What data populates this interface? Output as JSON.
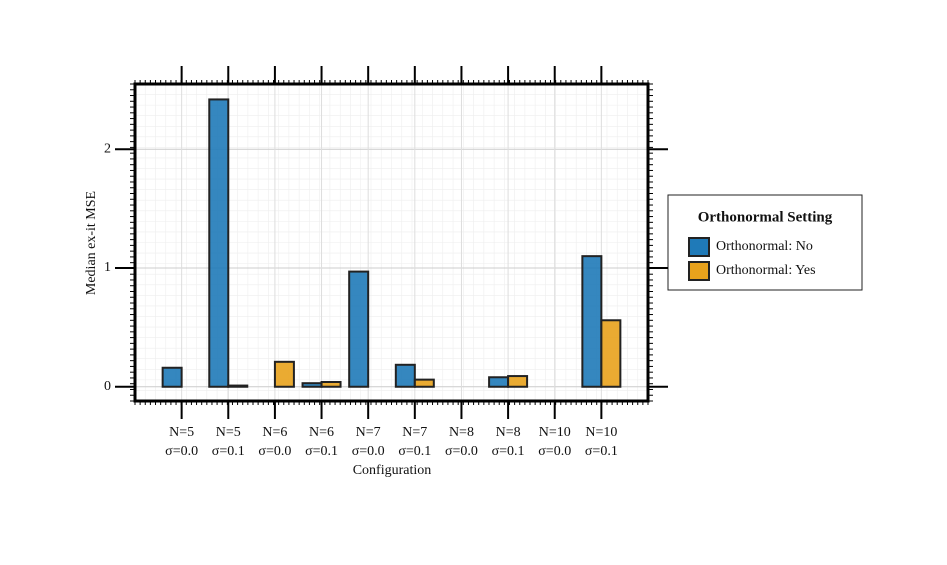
{
  "chart_data": {
    "type": "bar",
    "xlabel": "Configuration",
    "ylabel": "Median ex-it MSE",
    "categories": [
      [
        "N=5",
        "σ=0.0"
      ],
      [
        "N=5",
        "σ=0.1"
      ],
      [
        "N=6",
        "σ=0.0"
      ],
      [
        "N=6",
        "σ=0.1"
      ],
      [
        "N=7",
        "σ=0.0"
      ],
      [
        "N=7",
        "σ=0.1"
      ],
      [
        "N=8",
        "σ=0.0"
      ],
      [
        "N=8",
        "σ=0.1"
      ],
      [
        "N=10",
        "σ=0.0"
      ],
      [
        "N=10",
        "σ=0.1"
      ]
    ],
    "series": [
      {
        "name": "Orthonormal: No",
        "color": "#1f7ab8",
        "values": [
          0.16,
          2.42,
          0.0,
          0.03,
          0.97,
          0.185,
          0.0,
          0.08,
          0.0,
          1.1
        ]
      },
      {
        "name": "Orthonormal: Yes",
        "color": "#e8a21c",
        "values": [
          0.0,
          0.01,
          0.21,
          0.04,
          0.0,
          0.06,
          0.0,
          0.09,
          0.0,
          0.56
        ]
      }
    ],
    "legend_title": "Orthonormal Setting",
    "legend_position": "outside right",
    "ylim": [
      -0.12,
      2.55
    ],
    "yticks": [
      0,
      1,
      2
    ],
    "grid": true
  }
}
